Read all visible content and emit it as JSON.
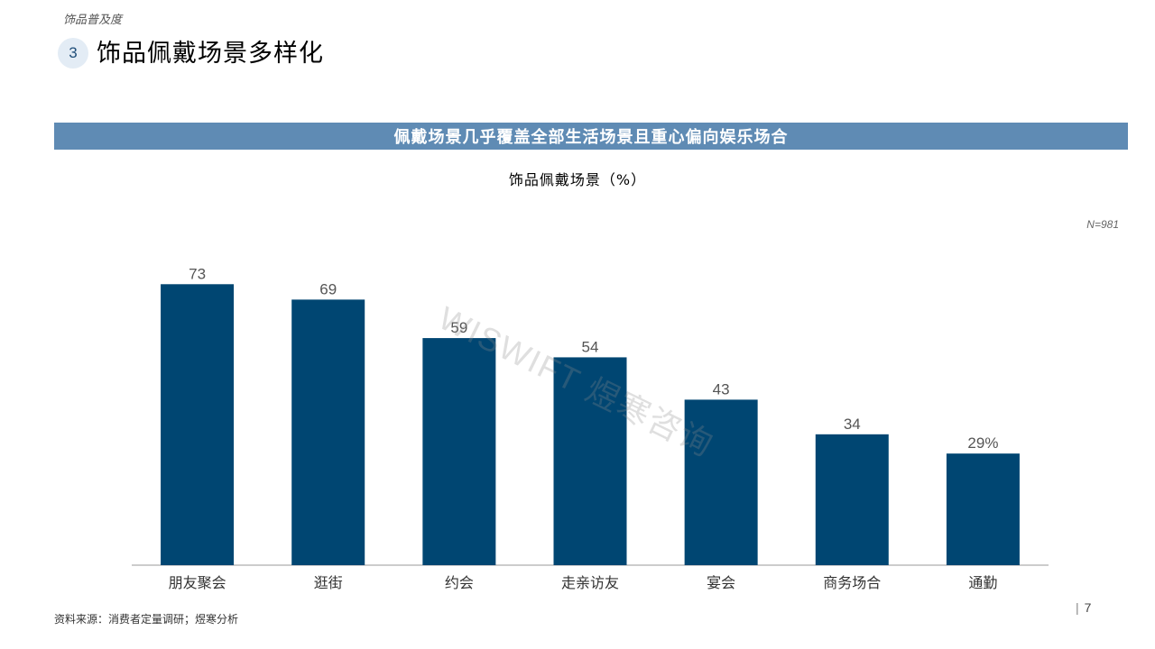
{
  "header": {
    "section_tag": "饰品普及度",
    "number": "3",
    "title": "饰品佩戴场景多样化"
  },
  "banner": "佩戴场景几乎覆盖全部生活场景且重心偏向娱乐场合",
  "sample_note": "N=981",
  "watermark": "WISWIFT 煜寒咨询",
  "source": "资料来源：消费者定量调研；煜寒分析",
  "page": {
    "separator": "|",
    "number": "7"
  },
  "colors": {
    "bar": "#004672",
    "banner": "#5f8bb4",
    "axis": "#999999",
    "label": "#555555"
  },
  "chart_data": {
    "type": "bar",
    "title": "饰品佩戴场景（%）",
    "categories": [
      "朋友聚会",
      "逛街",
      "约会",
      "走亲访友",
      "宴会",
      "商务场合",
      "通勤"
    ],
    "values": [
      73,
      69,
      59,
      54,
      43,
      34,
      29
    ],
    "value_labels": [
      "73",
      "69",
      "59",
      "54",
      "43",
      "34",
      "29%"
    ],
    "xlabel": "",
    "ylabel": "",
    "ylim": [
      0,
      100
    ],
    "grid": false,
    "legend": "none"
  }
}
